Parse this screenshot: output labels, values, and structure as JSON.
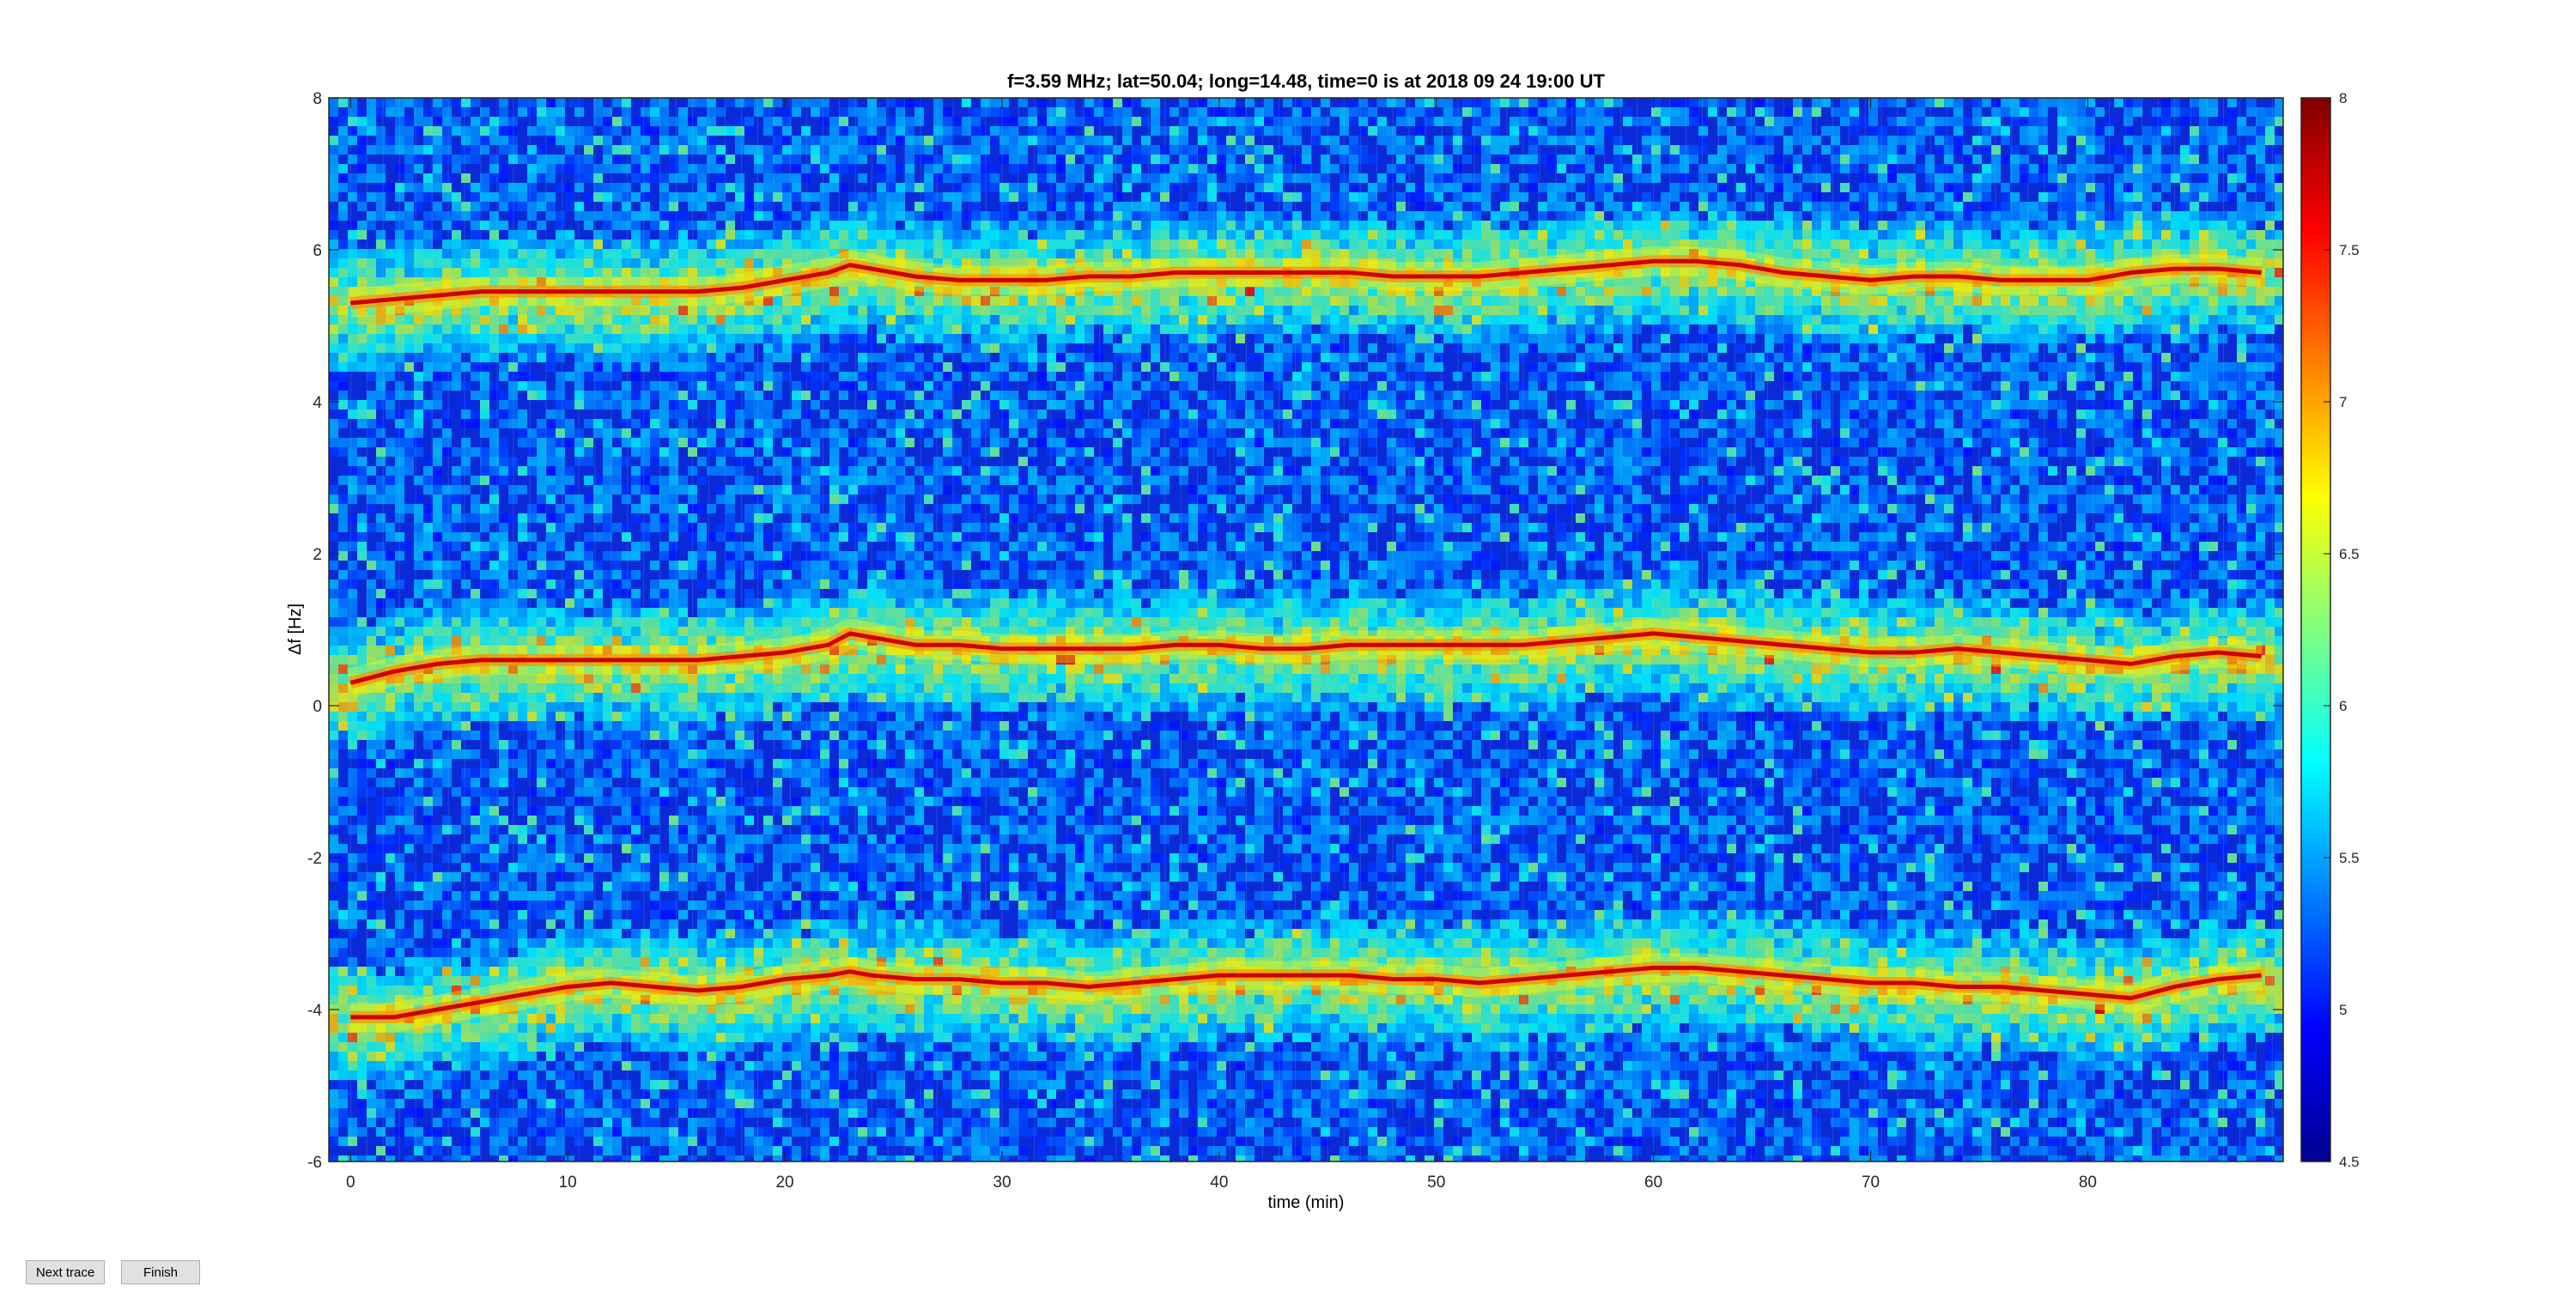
{
  "controls": {
    "next_label": "Next trace",
    "finish_label": "Finish"
  },
  "chart_data": {
    "type": "heatmap",
    "title": "f=3.59 MHz;  lat=50.04; long=14.48, time=0 is at 2018 09 24 19:00 UT",
    "xlabel": "time (min)",
    "ylabel": "Δf [Hz]",
    "xlim": [
      -1,
      89
    ],
    "ylim": [
      -6,
      8
    ],
    "xticks": [
      0,
      10,
      20,
      30,
      40,
      50,
      60,
      70,
      80
    ],
    "yticks": [
      -6,
      -4,
      -2,
      0,
      2,
      4,
      6,
      8
    ],
    "colorbar": {
      "range": [
        4.5,
        8
      ],
      "ticks": [
        4.5,
        5,
        5.5,
        6,
        6.5,
        7,
        7.5,
        8
      ],
      "colormap": "jet"
    },
    "traces": [
      {
        "x": [
          0,
          2,
          4,
          6,
          8,
          10,
          12,
          14,
          16,
          18,
          20,
          22,
          23,
          24,
          26,
          28,
          30,
          32,
          34,
          36,
          38,
          40,
          42,
          44,
          46,
          48,
          50,
          52,
          54,
          56,
          58,
          60,
          62,
          64,
          66,
          68,
          70,
          72,
          74,
          76,
          78,
          80,
          82,
          84,
          86,
          88
        ],
        "y": [
          5.3,
          5.35,
          5.4,
          5.45,
          5.45,
          5.45,
          5.45,
          5.45,
          5.45,
          5.5,
          5.6,
          5.7,
          5.8,
          5.75,
          5.65,
          5.6,
          5.6,
          5.6,
          5.65,
          5.65,
          5.7,
          5.7,
          5.7,
          5.7,
          5.7,
          5.65,
          5.65,
          5.65,
          5.7,
          5.75,
          5.8,
          5.85,
          5.85,
          5.8,
          5.7,
          5.65,
          5.6,
          5.65,
          5.65,
          5.6,
          5.6,
          5.6,
          5.7,
          5.75,
          5.75,
          5.7
        ]
      },
      {
        "x": [
          0,
          2,
          4,
          6,
          8,
          10,
          12,
          14,
          16,
          18,
          20,
          22,
          23,
          24,
          26,
          28,
          30,
          32,
          34,
          36,
          38,
          40,
          42,
          44,
          46,
          48,
          50,
          52,
          54,
          56,
          58,
          60,
          62,
          64,
          66,
          68,
          70,
          72,
          74,
          76,
          78,
          80,
          82,
          84,
          86,
          88
        ],
        "y": [
          0.3,
          0.45,
          0.55,
          0.6,
          0.6,
          0.6,
          0.6,
          0.6,
          0.6,
          0.65,
          0.7,
          0.8,
          0.95,
          0.9,
          0.8,
          0.8,
          0.75,
          0.75,
          0.75,
          0.75,
          0.8,
          0.8,
          0.75,
          0.75,
          0.8,
          0.8,
          0.8,
          0.8,
          0.8,
          0.85,
          0.9,
          0.95,
          0.9,
          0.85,
          0.8,
          0.75,
          0.7,
          0.7,
          0.75,
          0.7,
          0.65,
          0.6,
          0.55,
          0.65,
          0.7,
          0.65
        ]
      },
      {
        "x": [
          0,
          2,
          4,
          6,
          8,
          10,
          12,
          14,
          16,
          18,
          20,
          22,
          23,
          24,
          26,
          28,
          30,
          32,
          34,
          36,
          38,
          40,
          42,
          44,
          46,
          48,
          50,
          52,
          54,
          56,
          58,
          60,
          62,
          64,
          66,
          68,
          70,
          72,
          74,
          76,
          78,
          80,
          82,
          84,
          86,
          88
        ],
        "y": [
          -4.1,
          -4.1,
          -4.0,
          -3.9,
          -3.8,
          -3.7,
          -3.65,
          -3.7,
          -3.75,
          -3.7,
          -3.6,
          -3.55,
          -3.5,
          -3.55,
          -3.6,
          -3.6,
          -3.65,
          -3.65,
          -3.7,
          -3.65,
          -3.6,
          -3.55,
          -3.55,
          -3.55,
          -3.55,
          -3.6,
          -3.6,
          -3.65,
          -3.6,
          -3.55,
          -3.5,
          -3.45,
          -3.45,
          -3.5,
          -3.55,
          -3.6,
          -3.65,
          -3.65,
          -3.7,
          -3.7,
          -3.75,
          -3.8,
          -3.85,
          -3.7,
          -3.6,
          -3.55
        ]
      }
    ]
  }
}
